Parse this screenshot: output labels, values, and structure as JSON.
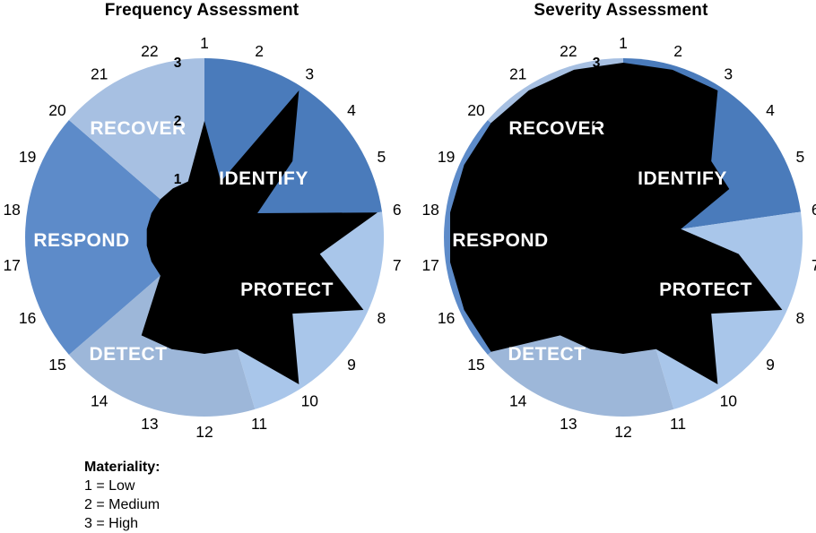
{
  "titles": {
    "left": "Frequency Assessment",
    "right": "Severity Assessment"
  },
  "legend": {
    "heading": "Materiality:",
    "items": [
      "1 = Low",
      "2 = Medium",
      "3 = High"
    ]
  },
  "sectors": [
    {
      "label": "IDENTIFY",
      "from_spoke": 1,
      "to_spoke": 6,
      "color": "#4a7bbb"
    },
    {
      "label": "PROTECT",
      "from_spoke": 6,
      "to_spoke": 11,
      "color": "#a9c6ea"
    },
    {
      "label": "DETECT",
      "from_spoke": 11,
      "to_spoke": 15,
      "color": "#9db7d9"
    },
    {
      "label": "RESPOND",
      "from_spoke": 15,
      "to_spoke": 20,
      "color": "#5d8bc9"
    },
    {
      "label": "RECOVER",
      "from_spoke": 20,
      "to_spoke": 23,
      "color": "#a7c0e2"
    }
  ],
  "chart_data": [
    {
      "type": "radar",
      "title": "Frequency Assessment",
      "categories": [
        1,
        2,
        3,
        4,
        5,
        6,
        7,
        8,
        9,
        10,
        11,
        12,
        13,
        14,
        15,
        16,
        17,
        18,
        19,
        20,
        21,
        22
      ],
      "values": [
        2,
        1,
        3,
        2,
        1,
        3,
        2,
        3,
        2,
        3,
        2,
        2,
        2,
        2,
        1,
        1,
        1,
        1,
        1,
        1,
        1,
        1
      ],
      "series_color": "#000000",
      "radial_ticks": [
        1,
        2,
        3
      ],
      "ylim": [
        0,
        3
      ],
      "grid": false,
      "legend_position": "none",
      "sector_groups": "IDENTIFY 1-5, PROTECT 6-10, DETECT 11-14, RESPOND 15-19, RECOVER 20-22"
    },
    {
      "type": "radar",
      "title": "Severity Assessment",
      "categories": [
        1,
        2,
        3,
        4,
        5,
        6,
        7,
        8,
        9,
        10,
        11,
        12,
        13,
        14,
        15,
        16,
        17,
        18,
        19,
        20,
        21,
        22
      ],
      "values": [
        3,
        3,
        3,
        2,
        2,
        1,
        2,
        3,
        2,
        3,
        2,
        2,
        2,
        2,
        3,
        3,
        3,
        3,
        3,
        3,
        3,
        3
      ],
      "series_color": "#000000",
      "radial_ticks": [
        1,
        2,
        3
      ],
      "ylim": [
        0,
        3
      ],
      "grid": false,
      "legend_position": "none",
      "sector_groups": "IDENTIFY 1-5, PROTECT 6-10, DETECT 11-14, RESPOND 15-19, RECOVER 20-22"
    }
  ]
}
